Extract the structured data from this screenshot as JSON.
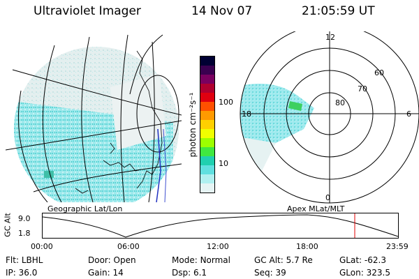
{
  "header": {
    "instrument": "Ultraviolet Imager",
    "date": "14 Nov 07",
    "time": "21:05:59 UT"
  },
  "colorbar": {
    "unit_label": "photon cm⁻²s⁻¹",
    "ticks": [
      "100",
      "10"
    ],
    "colors": [
      "#000033",
      "#3a0050",
      "#7a0060",
      "#b00030",
      "#e00010",
      "#ff5000",
      "#ff9a00",
      "#ffd000",
      "#f0ff00",
      "#9cff00",
      "#40e840",
      "#20d0b0",
      "#60e0e0",
      "#b0f0f0",
      "#e6f4f4"
    ]
  },
  "left_panel": {
    "caption": "Geographic Lat/Lon"
  },
  "polar_panel": {
    "caption": "Apex MLat/MLT",
    "mlt_labels": [
      "12",
      "18",
      "6",
      "0"
    ],
    "lat_labels": [
      "60",
      "70",
      "80"
    ]
  },
  "timeline": {
    "axis_label": "GC Alt",
    "y_ticks": [
      "9.0",
      "1.8"
    ],
    "x_ticks": [
      "00:00",
      "06:00",
      "12:00",
      "18:00",
      "23:59"
    ]
  },
  "info": {
    "row1": [
      {
        "key": "Flt:",
        "value": "LBHL"
      },
      {
        "key": "Door:",
        "value": "Open"
      },
      {
        "key": "Mode:",
        "value": "Normal"
      },
      {
        "key": "GC Alt:",
        "value": "5.7 Re"
      },
      {
        "key": "GLat:",
        "value": "-62.3"
      }
    ],
    "row2": [
      {
        "key": "IP:",
        "value": "36.0"
      },
      {
        "key": "Gain:",
        "value": "14"
      },
      {
        "key": "Dsp:",
        "value": "6.1"
      },
      {
        "key": "Seq:",
        "value": "39"
      },
      {
        "key": "GLon:",
        "value": "323.5"
      }
    ]
  }
}
